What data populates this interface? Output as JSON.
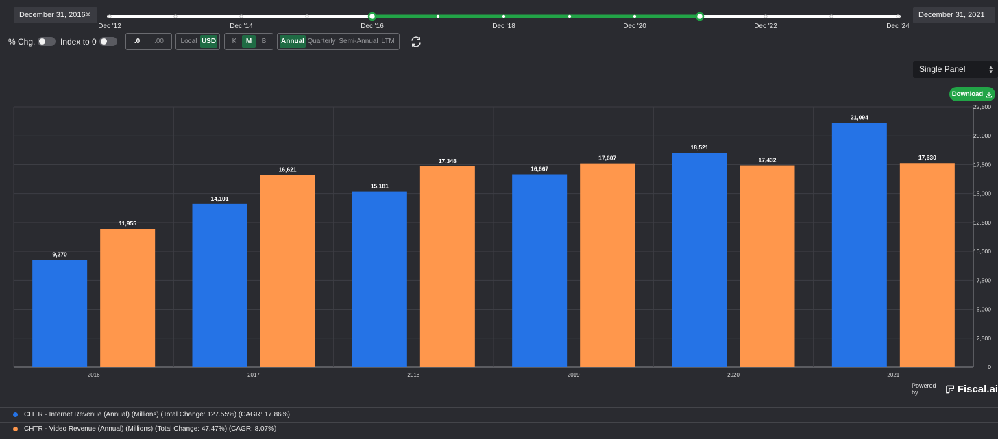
{
  "date_range": {
    "start_label": "December 31, 2016",
    "end_label": "December 31, 2021",
    "clear_symbol": "×",
    "timeline_labels": [
      "Dec '12",
      "Dec '14",
      "Dec '16",
      "Dec '18",
      "Dec '20",
      "Dec '22",
      "Dec '24"
    ],
    "selected_range": [
      "Dec '16",
      "Dec '21"
    ]
  },
  "toolbar": {
    "pct_chg_label": "% Chg.",
    "index_to_zero_label": "Index to 0",
    "decimals": [
      ".0",
      ".00"
    ],
    "currency": [
      "Local",
      "USD"
    ],
    "currency_selected": "USD",
    "units": [
      "K",
      "M",
      "B"
    ],
    "units_selected": "M",
    "periods": [
      "Annual",
      "Quarterly",
      "Semi-Annual",
      "LTM"
    ],
    "period_selected": "Annual"
  },
  "panel_select": {
    "value": "Single Panel"
  },
  "download": {
    "label": "Download"
  },
  "powered_by": {
    "prefix": "Powered by",
    "brand": "Fiscal.ai"
  },
  "colors": {
    "internet": "#2573e6",
    "video": "#ff974c",
    "accent": "#22a447",
    "background": "#2a2b30"
  },
  "chart_data": {
    "type": "bar",
    "title": "",
    "xlabel": "",
    "ylabel": "",
    "categories": [
      "2016",
      "2017",
      "2018",
      "2019",
      "2020",
      "2021"
    ],
    "series": [
      {
        "name": "CHTR - Internet Revenue (Annual) (Millions) (Total Change: 127.55%) (CAGR: 17.86%)",
        "color": "#2573e6",
        "values": [
          9270,
          14101,
          15181,
          16667,
          18521,
          21094
        ],
        "labels": [
          "9,270",
          "14,101",
          "15,181",
          "16,667",
          "18,521",
          "21,094"
        ]
      },
      {
        "name": "CHTR - Video Revenue (Annual) (Millions) (Total Change: 47.47%) (CAGR: 8.07%)",
        "color": "#ff974c",
        "values": [
          11955,
          16621,
          17348,
          17607,
          17432,
          17630
        ],
        "labels": [
          "11,955",
          "16,621",
          "17,348",
          "17,607",
          "17,432",
          "17,630"
        ]
      }
    ],
    "ylim": [
      0,
      22500
    ],
    "yticks": [
      0,
      2500,
      5000,
      7500,
      10000,
      12500,
      15000,
      17500,
      20000,
      22500
    ],
    "ytick_labels": [
      "0",
      "2,500",
      "5,000",
      "7,500",
      "10,000",
      "12,500",
      "15,000",
      "17,500",
      "20,000",
      "22,500"
    ],
    "grid": true,
    "legend_position": "bottom"
  }
}
